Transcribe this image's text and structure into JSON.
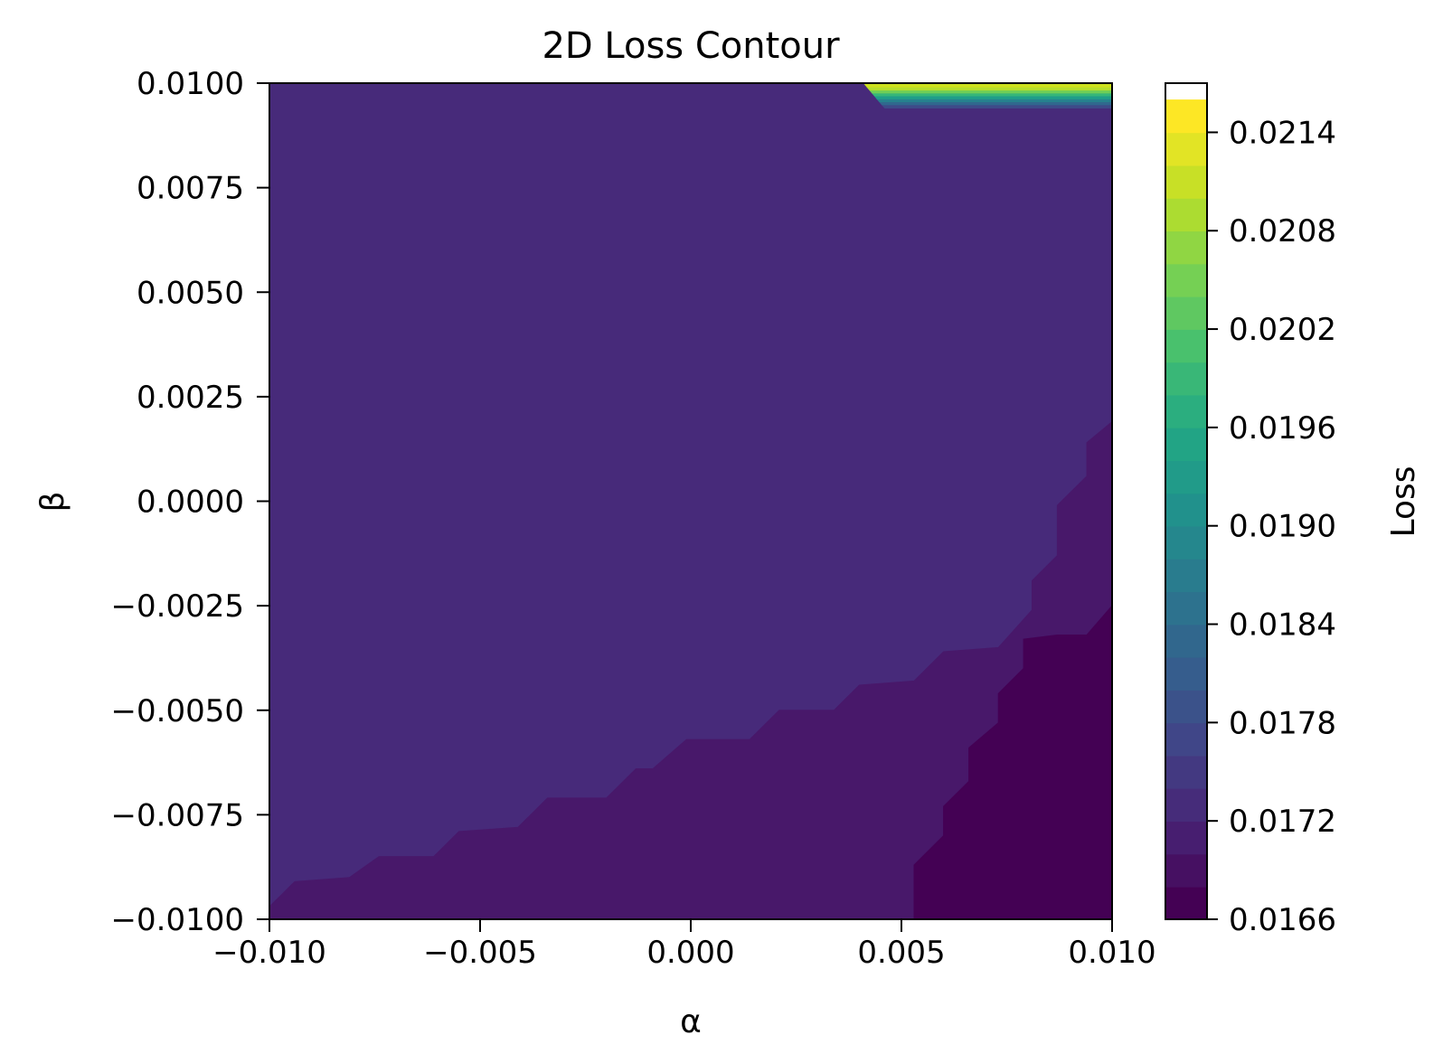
{
  "chart_data": {
    "type": "heatmap",
    "subtype": "filled-contour",
    "title": "2D Loss Contour",
    "xlabel": "α",
    "ylabel": "β",
    "colorbar_label": "Loss",
    "colormap": "viridis",
    "xlim": [
      -0.01,
      0.01
    ],
    "ylim": [
      -0.01,
      0.01
    ],
    "x_ticks": [
      "−0.010",
      "−0.005",
      "0.000",
      "0.005",
      "0.010"
    ],
    "x_tick_values": [
      -0.01,
      -0.005,
      0.0,
      0.005,
      0.01
    ],
    "y_ticks": [
      "−0.0100",
      "−0.0075",
      "−0.0050",
      "−0.0025",
      "0.0000",
      "0.0025",
      "0.0050",
      "0.0075",
      "0.0100"
    ],
    "y_tick_values": [
      -0.01,
      -0.0075,
      -0.005,
      -0.0025,
      0.0,
      0.0025,
      0.005,
      0.0075,
      0.01
    ],
    "colorbar_ticks": [
      "0.0166",
      "0.0172",
      "0.0178",
      "0.0184",
      "0.0190",
      "0.0196",
      "0.0202",
      "0.0208",
      "0.0214"
    ],
    "colorbar_tick_values": [
      0.0166,
      0.0172,
      0.0178,
      0.0184,
      0.019,
      0.0196,
      0.0202,
      0.0208,
      0.0214
    ],
    "colorbar_range": [
      0.0166,
      0.0217
    ],
    "levels": [
      0.0166,
      0.0168,
      0.017,
      0.0172,
      0.0174,
      0.0176,
      0.0178,
      0.018,
      0.0182,
      0.0184,
      0.0186,
      0.0188,
      0.019,
      0.0192,
      0.0194,
      0.0196,
      0.0198,
      0.02,
      0.0202,
      0.0204,
      0.0206,
      0.0208,
      0.021,
      0.0212,
      0.0214,
      0.0216
    ],
    "regions": [
      {
        "level": 0.0171,
        "color": "#472a7a",
        "polygon": [
          [
            -0.01,
            -0.01
          ],
          [
            -0.01,
            0.01
          ],
          [
            0.01,
            0.01
          ],
          [
            0.01,
            -0.01
          ]
        ]
      },
      {
        "level": 0.0169,
        "color": "#48186a",
        "polygon": [
          [
            -0.01,
            -0.01
          ],
          [
            -0.01,
            -0.0097
          ],
          [
            -0.0094,
            -0.0091
          ],
          [
            -0.0081,
            -0.009
          ],
          [
            -0.0074,
            -0.0085
          ],
          [
            -0.0061,
            -0.0085
          ],
          [
            -0.0055,
            -0.0079
          ],
          [
            -0.0041,
            -0.0078
          ],
          [
            -0.0034,
            -0.0071
          ],
          [
            -0.002,
            -0.0071
          ],
          [
            -0.0013,
            -0.0064
          ],
          [
            -0.0009,
            -0.0064
          ],
          [
            -0.0001,
            -0.0057
          ],
          [
            0.0014,
            -0.0057
          ],
          [
            0.0021,
            -0.005
          ],
          [
            0.0034,
            -0.005
          ],
          [
            0.004,
            -0.0044
          ],
          [
            0.0053,
            -0.0043
          ],
          [
            0.006,
            -0.0036
          ],
          [
            0.0073,
            -0.0035
          ],
          [
            0.0081,
            -0.0026
          ],
          [
            0.0081,
            -0.0019
          ],
          [
            0.0087,
            -0.0013
          ],
          [
            0.0087,
            -0.0001
          ],
          [
            0.0094,
            0.0006
          ],
          [
            0.0094,
            0.0014
          ],
          [
            0.01,
            0.0019
          ],
          [
            0.01,
            -0.01
          ]
        ]
      },
      {
        "level": 0.0167,
        "color": "#440154",
        "polygon": [
          [
            0.0053,
            -0.01
          ],
          [
            0.0053,
            -0.0087
          ],
          [
            0.006,
            -0.008
          ],
          [
            0.006,
            -0.0073
          ],
          [
            0.0066,
            -0.0067
          ],
          [
            0.0066,
            -0.0059
          ],
          [
            0.0073,
            -0.0053
          ],
          [
            0.0073,
            -0.0046
          ],
          [
            0.0079,
            -0.004
          ],
          [
            0.0079,
            -0.0033
          ],
          [
            0.0087,
            -0.0032
          ],
          [
            0.0094,
            -0.0032
          ],
          [
            0.01,
            -0.0025
          ],
          [
            0.01,
            -0.01
          ]
        ]
      }
    ],
    "top_band": {
      "x_start": 0.0041,
      "x_shoulder": 0.0046,
      "x_end": 0.01,
      "y_min": 0.0094,
      "y_max": 0.01,
      "bands": [
        {
          "y_from": 0.0094,
          "y_to": 0.00948,
          "color": "#3e4a89"
        },
        {
          "y_from": 0.00948,
          "y_to": 0.00955,
          "color": "#31688e"
        },
        {
          "y_from": 0.00955,
          "y_to": 0.00962,
          "color": "#26828e"
        },
        {
          "y_from": 0.00962,
          "y_to": 0.00969,
          "color": "#1f9e89"
        },
        {
          "y_from": 0.00969,
          "y_to": 0.00976,
          "color": "#35b779"
        },
        {
          "y_from": 0.00976,
          "y_to": 0.00983,
          "color": "#6ece58"
        },
        {
          "y_from": 0.00983,
          "y_to": 0.0099,
          "color": "#b5de2b"
        },
        {
          "y_from": 0.0099,
          "y_to": 0.01,
          "color": "#cde11d"
        }
      ]
    },
    "viridis_stops": [
      "#440154",
      "#482475",
      "#414487",
      "#355f8d",
      "#2a788e",
      "#21918c",
      "#22a884",
      "#44bf70",
      "#7ad151",
      "#bddf26",
      "#fde725"
    ]
  }
}
